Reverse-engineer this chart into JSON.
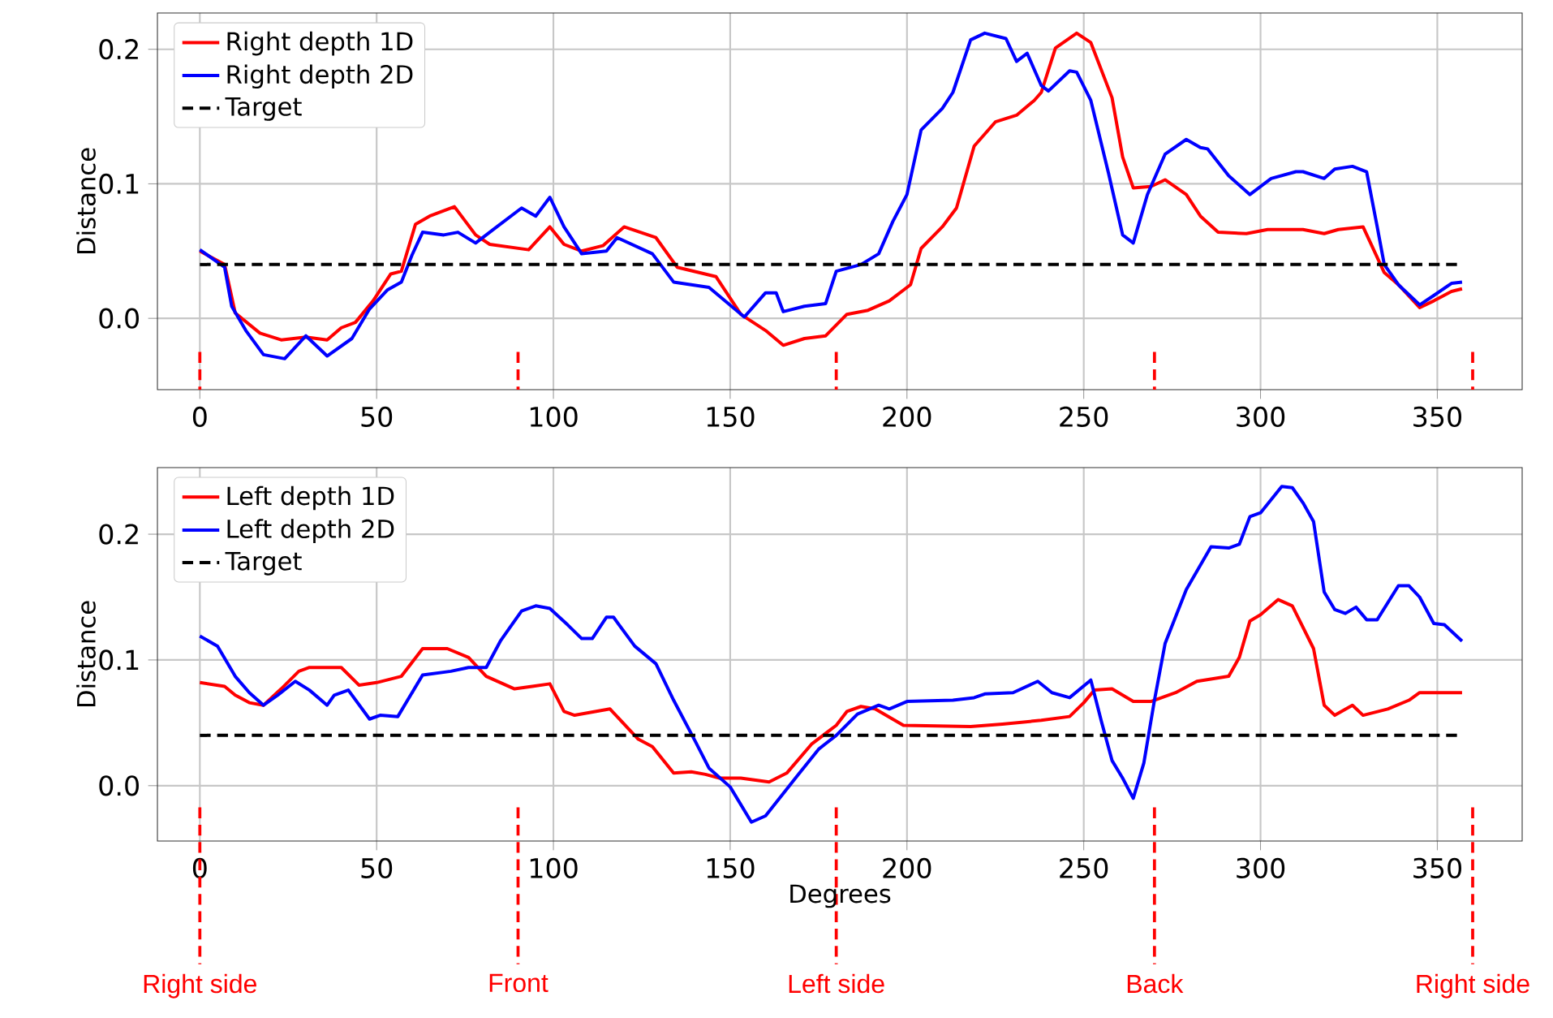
{
  "chart_data": [
    {
      "type": "line",
      "ylabel": "Distance",
      "legend": "top left",
      "grid": true,
      "xlim": [
        -12,
        374
      ],
      "ylim": [
        -0.053,
        0.227
      ],
      "xticks": [
        0,
        50,
        100,
        150,
        200,
        250,
        300,
        350
      ],
      "yticks": [
        {
          "value": 0,
          "label": "0.0"
        },
        {
          "value": 0.1,
          "label": "0.1"
        },
        {
          "value": 0.2,
          "label": "0.2"
        }
      ],
      "series": [
        {
          "name": "Right depth 1D",
          "color": "#ff0000",
          "x": [
            0,
            7,
            10,
            17,
            23,
            30,
            36,
            40,
            44,
            49,
            54,
            57,
            61,
            65,
            72,
            78,
            82,
            93,
            99,
            103,
            108,
            114,
            120,
            129,
            135,
            146,
            153,
            160,
            165,
            171,
            177,
            183,
            189,
            195,
            201,
            204,
            210,
            214,
            219,
            225,
            231,
            236,
            238,
            242,
            248,
            252,
            258,
            261,
            264,
            269,
            273,
            279,
            283,
            288,
            296,
            302,
            312,
            318,
            322,
            329,
            335,
            339,
            345,
            349,
            354,
            357
          ],
          "values": [
            0.05,
            0.04,
            0.004,
            -0.011,
            -0.016,
            -0.014,
            -0.016,
            -0.007,
            -0.003,
            0.013,
            0.033,
            0.035,
            0.07,
            0.076,
            0.083,
            0.062,
            0.055,
            0.051,
            0.068,
            0.055,
            0.05,
            0.054,
            0.068,
            0.06,
            0.038,
            0.031,
            0.003,
            -0.009,
            -0.02,
            -0.015,
            -0.013,
            0.003,
            0.006,
            0.013,
            0.025,
            0.052,
            0.068,
            0.082,
            0.128,
            0.146,
            0.151,
            0.162,
            0.168,
            0.201,
            0.212,
            0.205,
            0.164,
            0.12,
            0.097,
            0.098,
            0.103,
            0.092,
            0.076,
            0.064,
            0.063,
            0.066,
            0.066,
            0.063,
            0.066,
            0.068,
            0.034,
            0.025,
            0.008,
            0.013,
            0.02,
            0.022
          ]
        },
        {
          "name": "Right depth 2D",
          "color": "#0000ff",
          "x": [
            0,
            7,
            9,
            13,
            18,
            24,
            30,
            36,
            43,
            48,
            53,
            57,
            60,
            63,
            69,
            73,
            78,
            84,
            91,
            95,
            99,
            103,
            108,
            115,
            118,
            128,
            134,
            144,
            154,
            160,
            163,
            165,
            171,
            177,
            180,
            187,
            192,
            196,
            200,
            204,
            210,
            213,
            218,
            222,
            228,
            231,
            234,
            238,
            240,
            246,
            248,
            252,
            257,
            261,
            264,
            268,
            273,
            279,
            283,
            285,
            291,
            297,
            303,
            310,
            312,
            318,
            321,
            326,
            330,
            333,
            335,
            339,
            345,
            349,
            354,
            357
          ],
          "values": [
            0.051,
            0.038,
            0.009,
            -0.009,
            -0.027,
            -0.03,
            -0.013,
            -0.028,
            -0.015,
            0.007,
            0.021,
            0.027,
            0.047,
            0.064,
            0.062,
            0.064,
            0.056,
            0.068,
            0.082,
            0.076,
            0.09,
            0.068,
            0.048,
            0.05,
            0.06,
            0.048,
            0.027,
            0.023,
            0.001,
            0.019,
            0.019,
            0.005,
            0.009,
            0.011,
            0.035,
            0.04,
            0.048,
            0.072,
            0.092,
            0.14,
            0.156,
            0.168,
            0.207,
            0.212,
            0.208,
            0.191,
            0.197,
            0.173,
            0.169,
            0.184,
            0.183,
            0.162,
            0.108,
            0.062,
            0.056,
            0.092,
            0.122,
            0.133,
            0.127,
            0.126,
            0.106,
            0.092,
            0.104,
            0.109,
            0.109,
            0.104,
            0.111,
            0.113,
            0.109,
            0.068,
            0.04,
            0.025,
            0.01,
            0.017,
            0.026,
            0.027
          ]
        },
        {
          "name": "Target",
          "color": "#000000",
          "line_style": "dashed",
          "x": [
            0,
            357
          ],
          "values": [
            0.04,
            0.04
          ]
        }
      ],
      "ref_lines": [
        {
          "axis": "x",
          "value": 0,
          "color": "#ff0000",
          "line_style": "dashed"
        },
        {
          "axis": "x",
          "value": 90,
          "color": "#ff0000",
          "line_style": "dashed"
        },
        {
          "axis": "x",
          "value": 180,
          "color": "#ff0000",
          "line_style": "dashed"
        },
        {
          "axis": "x",
          "value": 270,
          "color": "#ff0000",
          "line_style": "dashed"
        },
        {
          "axis": "x",
          "value": 360,
          "color": "#ff0000",
          "line_style": "dashed"
        }
      ]
    },
    {
      "type": "line",
      "xlabel": "Degrees",
      "ylabel": "Distance",
      "legend": "top left",
      "grid": true,
      "xlim": [
        -12,
        374
      ],
      "ylim": [
        -0.044,
        0.253
      ],
      "xticks": [
        0,
        50,
        100,
        150,
        200,
        250,
        300,
        350
      ],
      "yticks": [
        {
          "value": 0,
          "label": "0.0"
        },
        {
          "value": 0.1,
          "label": "0.1"
        },
        {
          "value": 0.2,
          "label": "0.2"
        }
      ],
      "series": [
        {
          "name": "Left depth 1D",
          "color": "#ff0000",
          "x": [
            0,
            7,
            10,
            14,
            18,
            23,
            28,
            31,
            40,
            45,
            50,
            57,
            63,
            70,
            76,
            81,
            89,
            94,
            99,
            103,
            106,
            116,
            124,
            128,
            134,
            139,
            143,
            147,
            153,
            161,
            166,
            173,
            180,
            183,
            187,
            191,
            199,
            218,
            227,
            238,
            246,
            250,
            253,
            258,
            264,
            269,
            276,
            282,
            291,
            294,
            297,
            300,
            305,
            309,
            315,
            318,
            321,
            326,
            329,
            336,
            342,
            345,
            357
          ],
          "values": [
            0.082,
            0.079,
            0.072,
            0.066,
            0.064,
            0.077,
            0.091,
            0.094,
            0.094,
            0.08,
            0.082,
            0.087,
            0.109,
            0.109,
            0.102,
            0.087,
            0.077,
            0.079,
            0.081,
            0.059,
            0.056,
            0.061,
            0.037,
            0.031,
            0.01,
            0.011,
            0.009,
            0.006,
            0.006,
            0.003,
            0.01,
            0.033,
            0.048,
            0.059,
            0.063,
            0.061,
            0.048,
            0.047,
            0.049,
            0.052,
            0.055,
            0.066,
            0.076,
            0.077,
            0.067,
            0.067,
            0.074,
            0.083,
            0.087,
            0.102,
            0.131,
            0.136,
            0.148,
            0.143,
            0.109,
            0.064,
            0.056,
            0.064,
            0.056,
            0.061,
            0.068,
            0.074,
            0.074
          ]
        },
        {
          "name": "Left depth 2D",
          "color": "#0000ff",
          "x": [
            0,
            5,
            10,
            14,
            18,
            22,
            27,
            31,
            36,
            38,
            42,
            48,
            51,
            56,
            63,
            71,
            76,
            81,
            85,
            91,
            95,
            99,
            104,
            108,
            111,
            115,
            117,
            123,
            129,
            134,
            140,
            144,
            150,
            156,
            160,
            169,
            175,
            180,
            186,
            192,
            195,
            200,
            213,
            219,
            222,
            230,
            237,
            241,
            246,
            252,
            255,
            258,
            261,
            264,
            267,
            270,
            273,
            279,
            286,
            291,
            294,
            297,
            300,
            306,
            309,
            312,
            315,
            318,
            321,
            324,
            327,
            330,
            333,
            339,
            342,
            345,
            349,
            352,
            357
          ],
          "values": [
            0.119,
            0.111,
            0.087,
            0.074,
            0.064,
            0.072,
            0.083,
            0.076,
            0.064,
            0.072,
            0.076,
            0.053,
            0.056,
            0.055,
            0.088,
            0.091,
            0.094,
            0.094,
            0.115,
            0.139,
            0.143,
            0.141,
            0.128,
            0.117,
            0.117,
            0.134,
            0.134,
            0.111,
            0.097,
            0.068,
            0.036,
            0.014,
            -0.001,
            -0.029,
            -0.024,
            0.008,
            0.029,
            0.04,
            0.057,
            0.064,
            0.061,
            0.067,
            0.068,
            0.07,
            0.073,
            0.074,
            0.083,
            0.074,
            0.07,
            0.084,
            0.051,
            0.02,
            0.006,
            -0.01,
            0.018,
            0.068,
            0.113,
            0.156,
            0.19,
            0.189,
            0.192,
            0.214,
            0.217,
            0.238,
            0.237,
            0.225,
            0.21,
            0.154,
            0.14,
            0.137,
            0.142,
            0.132,
            0.132,
            0.159,
            0.159,
            0.15,
            0.129,
            0.128,
            0.115
          ]
        },
        {
          "name": "Target",
          "color": "#000000",
          "line_style": "dashed",
          "x": [
            0,
            357
          ],
          "values": [
            0.04,
            0.04
          ]
        }
      ],
      "ref_lines": [
        {
          "axis": "x",
          "value": 0,
          "color": "#ff0000",
          "line_style": "dashed",
          "label": "Right side"
        },
        {
          "axis": "x",
          "value": 90,
          "color": "#ff0000",
          "line_style": "dashed",
          "label": "Front"
        },
        {
          "axis": "x",
          "value": 180,
          "color": "#ff0000",
          "line_style": "dashed",
          "label": "Left side"
        },
        {
          "axis": "x",
          "value": 270,
          "color": "#ff0000",
          "line_style": "dashed",
          "label": "Back"
        },
        {
          "axis": "x",
          "value": 360,
          "color": "#ff0000",
          "line_style": "dashed",
          "label": "Right side"
        }
      ]
    }
  ]
}
